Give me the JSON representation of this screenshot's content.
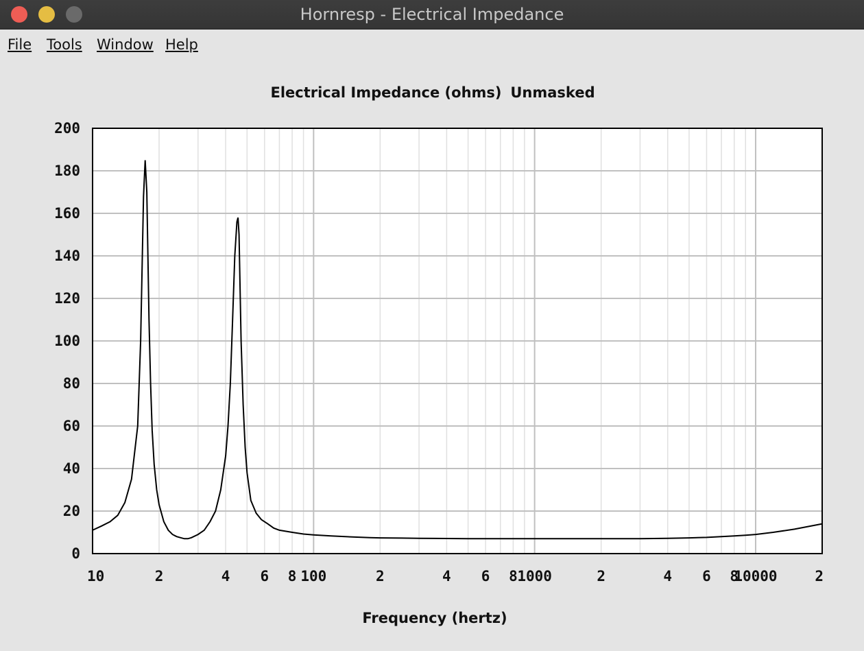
{
  "window": {
    "title": "Hornresp - Electrical Impedance"
  },
  "menu": [
    {
      "label": "File"
    },
    {
      "label": "Tools"
    },
    {
      "label": "Window"
    },
    {
      "label": "Help"
    }
  ],
  "colors": {
    "window_bg": "#e4e4e4",
    "plot_bg": "#ffffff",
    "major_grid": "#c0c0c0",
    "minor_grid": "#e0e0e0",
    "curve": "#000000"
  },
  "chart_data": {
    "type": "line",
    "title_parts": [
      "Electrical Impedance (ohms)",
      "Unmasked"
    ],
    "xlabel": "Frequency (hertz)",
    "ylabel": "",
    "x_scale": "log",
    "xlim": [
      10,
      20000
    ],
    "ylim": [
      0,
      200
    ],
    "grid": true,
    "y_ticks": [
      0,
      20,
      40,
      60,
      80,
      100,
      120,
      140,
      160,
      180,
      200
    ],
    "x_ticks": [
      {
        "value": 10,
        "label": "10"
      },
      {
        "value": 20,
        "label": "2"
      },
      {
        "value": 40,
        "label": "4"
      },
      {
        "value": 60,
        "label": "6"
      },
      {
        "value": 80,
        "label": "8"
      },
      {
        "value": 100,
        "label": "100"
      },
      {
        "value": 200,
        "label": "2"
      },
      {
        "value": 400,
        "label": "4"
      },
      {
        "value": 600,
        "label": "6"
      },
      {
        "value": 800,
        "label": "8"
      },
      {
        "value": 1000,
        "label": "1000"
      },
      {
        "value": 2000,
        "label": "2"
      },
      {
        "value": 4000,
        "label": "4"
      },
      {
        "value": 6000,
        "label": "6"
      },
      {
        "value": 8000,
        "label": "8"
      },
      {
        "value": 10000,
        "label": "10000"
      },
      {
        "value": 20000,
        "label": "2"
      }
    ],
    "series": [
      {
        "x": [
          10,
          11,
          12,
          13,
          14,
          15,
          16,
          16.5,
          17,
          17.3,
          17.6,
          17.8,
          18,
          18.3,
          18.6,
          19,
          19.5,
          20,
          21,
          22,
          23,
          24,
          25,
          26,
          27,
          28,
          30,
          32,
          34,
          36,
          38,
          40,
          41,
          42,
          43,
          44,
          45,
          45.5,
          46,
          46.5,
          47,
          48,
          49,
          50,
          52,
          55,
          58,
          62,
          66,
          70,
          80,
          90,
          100,
          120,
          150,
          180,
          200,
          250,
          300,
          400,
          500,
          600,
          800,
          1000,
          1500,
          2000,
          3000,
          4000,
          5000,
          6000,
          7000,
          8000,
          9000,
          10000,
          12000,
          15000,
          20000
        ],
        "values": [
          11,
          13,
          15,
          18,
          24,
          35,
          60,
          100,
          168,
          185,
          170,
          140,
          110,
          80,
          58,
          42,
          30,
          23,
          15,
          11,
          9,
          8,
          7.5,
          7,
          7,
          7.5,
          9,
          11,
          15,
          20,
          30,
          46,
          60,
          80,
          110,
          140,
          156,
          158,
          150,
          125,
          100,
          70,
          50,
          38,
          25,
          19,
          16,
          14,
          12,
          11,
          10,
          9.2,
          8.8,
          8.3,
          7.8,
          7.5,
          7.4,
          7.3,
          7.2,
          7.1,
          7.0,
          7.0,
          7.0,
          7.0,
          7.0,
          7.0,
          7.0,
          7.2,
          7.4,
          7.6,
          8.0,
          8.3,
          8.6,
          9.0,
          10,
          11.5,
          14
        ]
      }
    ]
  }
}
